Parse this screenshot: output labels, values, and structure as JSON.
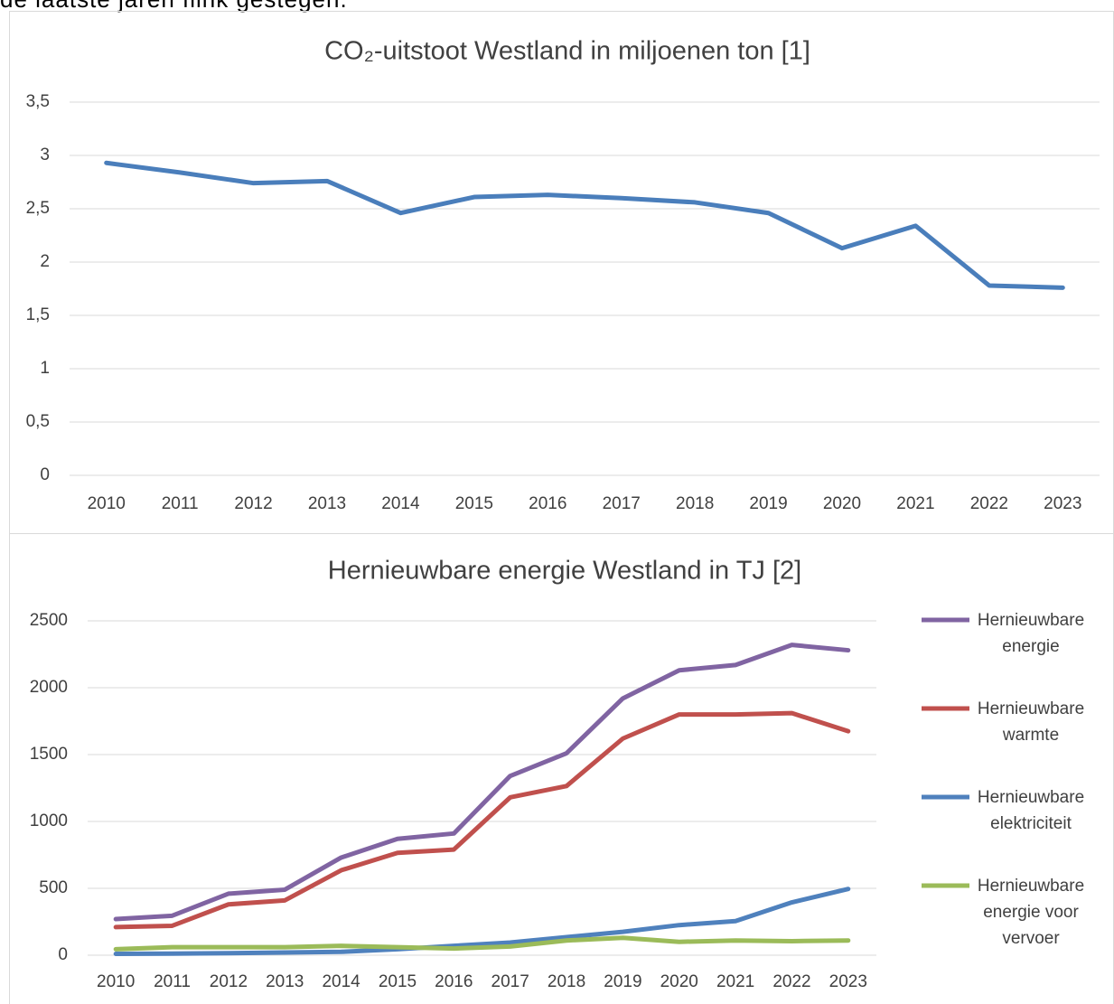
{
  "caption": "de laatste jaren flink gestegen.",
  "chart_data": [
    {
      "type": "line",
      "title": "CO₂-uitstoot Westland in miljoenen ton [1]",
      "categories": [
        "2010",
        "2011",
        "2012",
        "2013",
        "2014",
        "2015",
        "2016",
        "2017",
        "2018",
        "2019",
        "2020",
        "2021",
        "2022",
        "2023"
      ],
      "series": [
        {
          "name": "CO₂-uitstoot",
          "color": "#4a7ebb",
          "values": [
            2.93,
            2.84,
            2.74,
            2.76,
            2.46,
            2.61,
            2.63,
            2.6,
            2.56,
            2.46,
            2.13,
            2.34,
            1.78,
            1.76
          ]
        }
      ],
      "ylim": [
        0,
        3.5
      ],
      "yticks": [
        0,
        {
          "value": 0.5,
          "label": "0,5"
        },
        1,
        {
          "value": 1.5,
          "label": "1,5"
        },
        2,
        {
          "value": 2.5,
          "label": "2,5"
        },
        3,
        {
          "value": 3.5,
          "label": "3,5"
        }
      ],
      "grid": true,
      "legend": "none"
    },
    {
      "type": "line",
      "title": "Hernieuwbare energie Westland in TJ [2]",
      "categories": [
        "2010",
        "2011",
        "2012",
        "2013",
        "2014",
        "2015",
        "2016",
        "2017",
        "2018",
        "2019",
        "2020",
        "2021",
        "2022",
        "2023"
      ],
      "series": [
        {
          "name": "Hernieuwbare energie",
          "color": "#8064a2",
          "values": [
            270,
            295,
            460,
            490,
            730,
            870,
            910,
            1340,
            1510,
            1920,
            2130,
            2170,
            2320,
            2280
          ]
        },
        {
          "name": "Hernieuwbare warmte",
          "color": "#c0504d",
          "values": [
            210,
            220,
            380,
            410,
            635,
            765,
            790,
            1180,
            1265,
            1620,
            1800,
            1800,
            1810,
            1675
          ]
        },
        {
          "name": "Hernieuwbare elektriciteit",
          "color": "#4f81bd",
          "values": [
            10,
            12,
            15,
            20,
            25,
            45,
            70,
            95,
            135,
            175,
            225,
            255,
            395,
            495
          ]
        },
        {
          "name": "Hernieuwbare energie voor vervoer",
          "color": "#9bbb59",
          "values": [
            45,
            60,
            60,
            60,
            70,
            60,
            50,
            65,
            110,
            130,
            100,
            110,
            105,
            110
          ]
        }
      ],
      "ylim": [
        0,
        2500
      ],
      "yticks": [
        0,
        500,
        1000,
        1500,
        2000,
        2500
      ],
      "grid": true,
      "legend": "right"
    }
  ]
}
